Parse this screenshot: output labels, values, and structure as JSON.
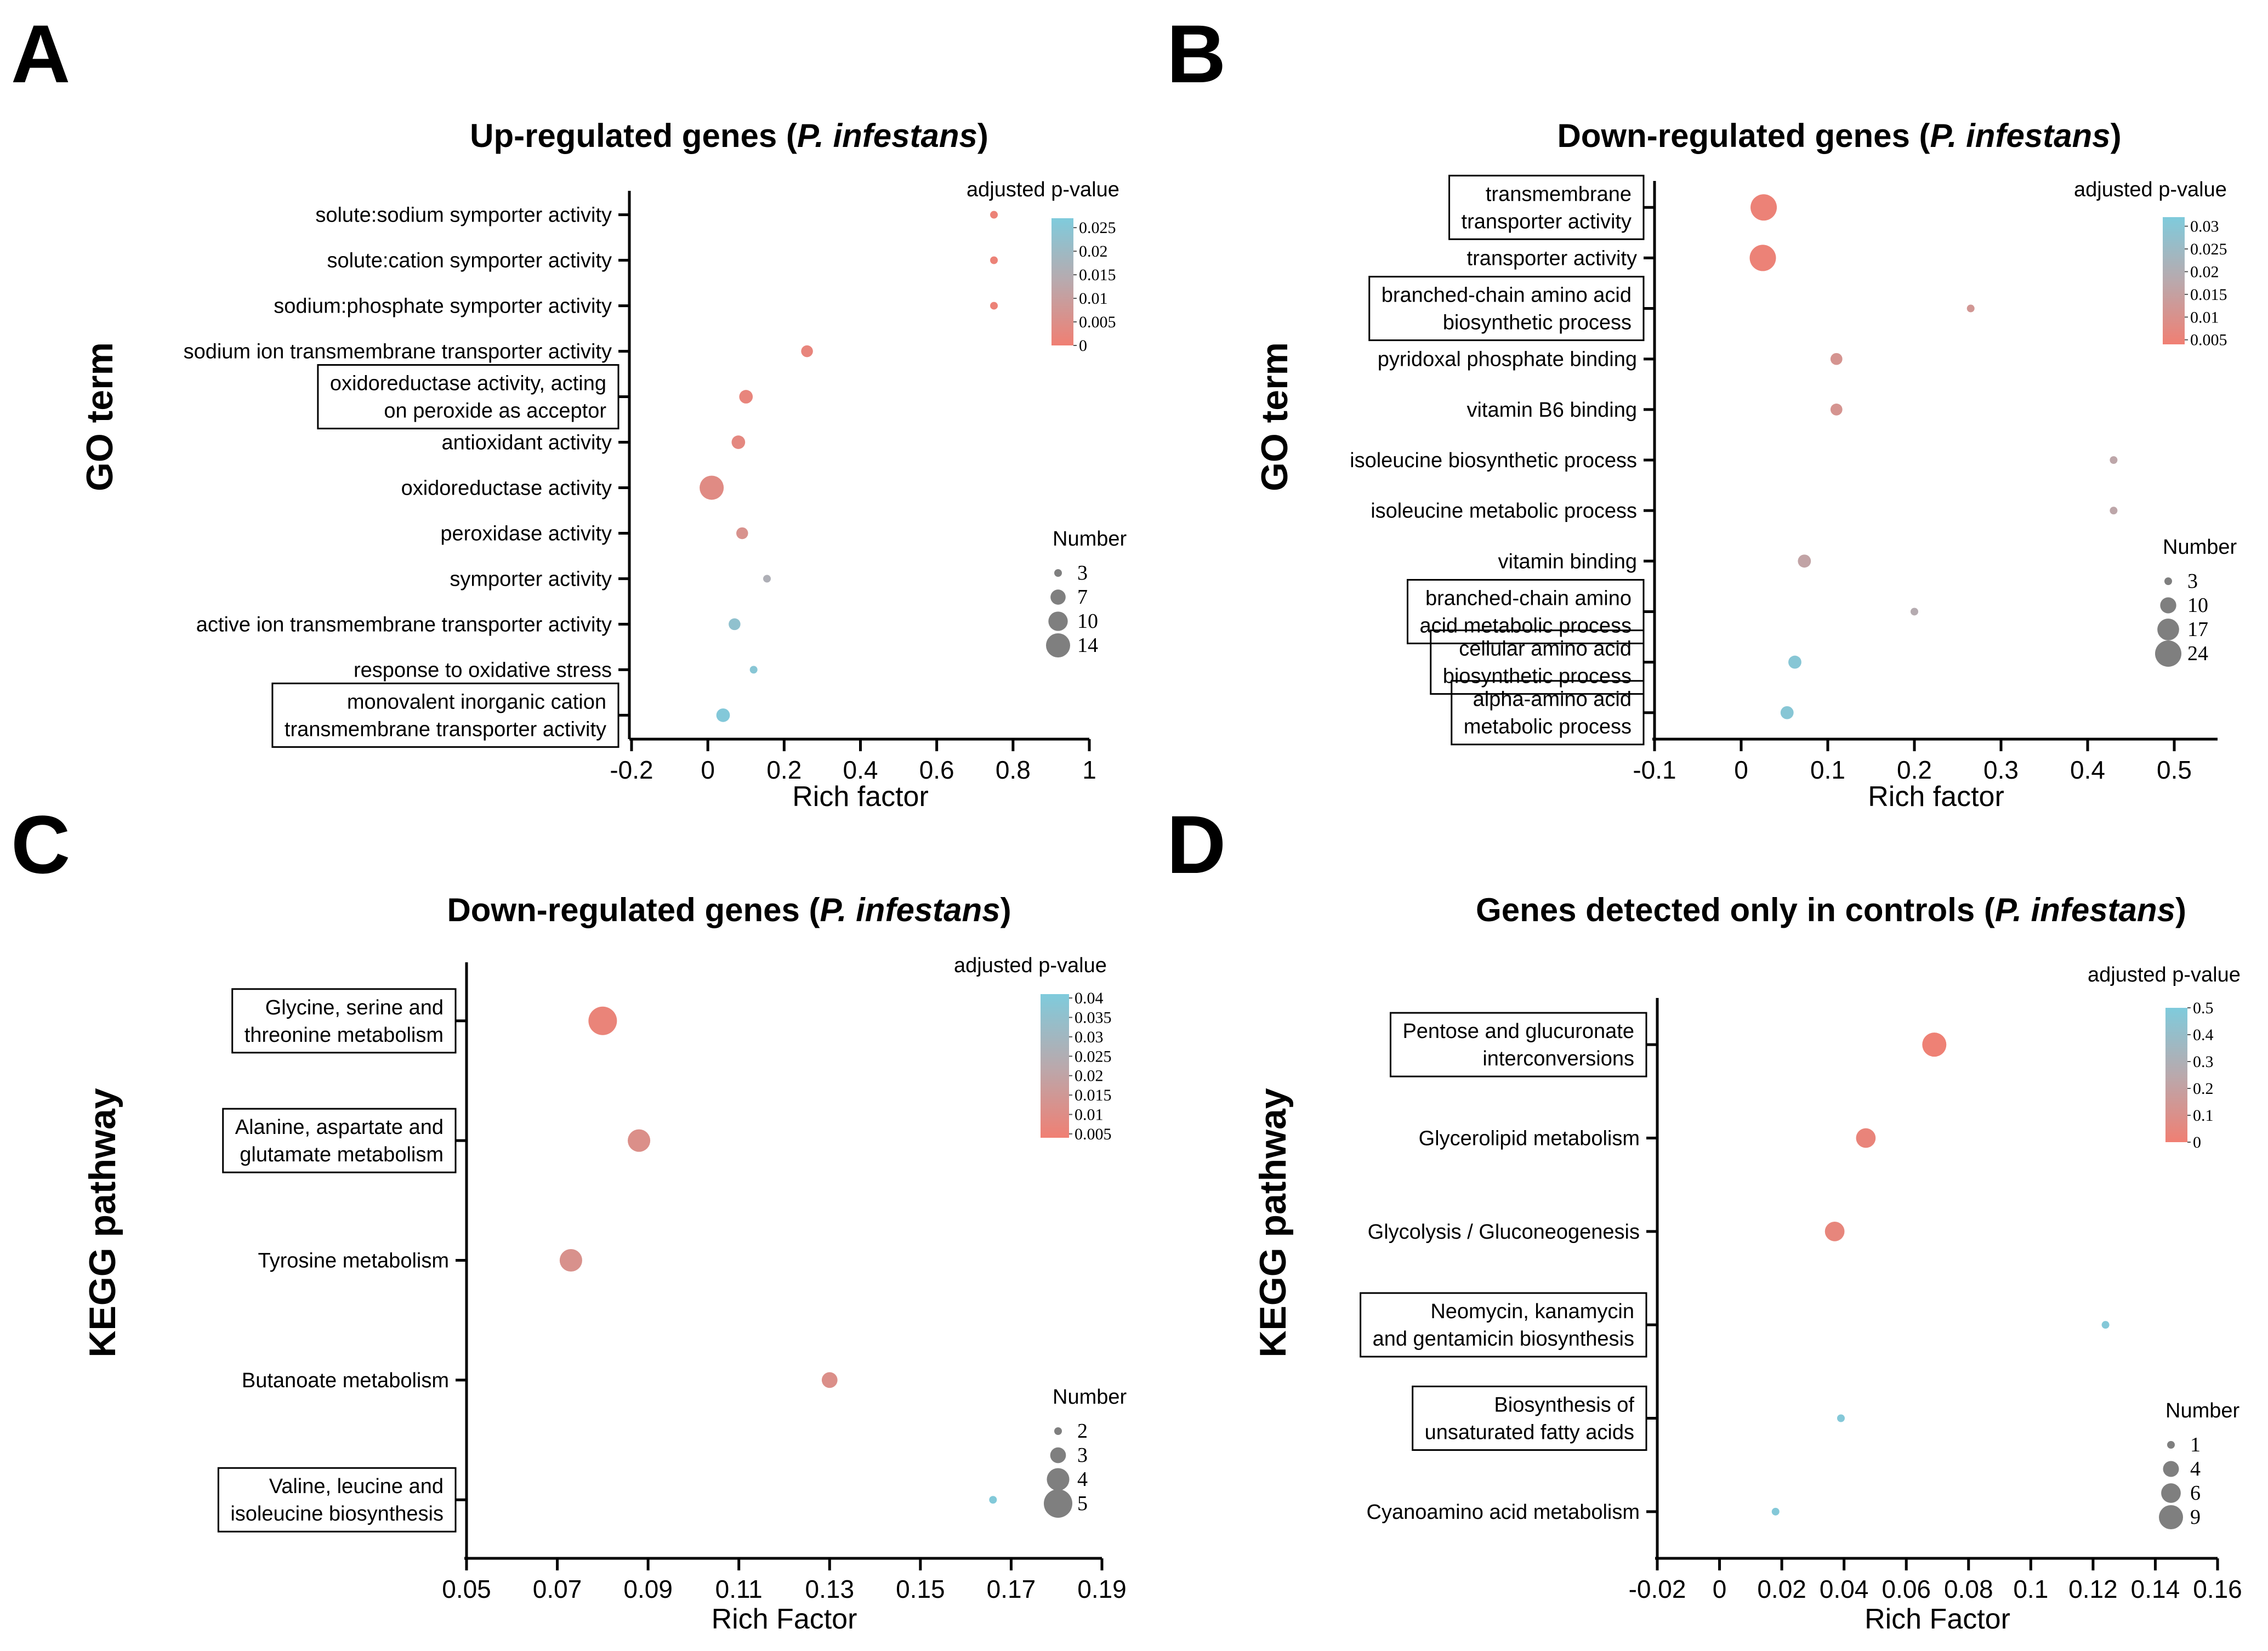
{
  "figure": {
    "panels": [
      "A",
      "B",
      "C",
      "D"
    ]
  },
  "chart_data": [
    {
      "panel": "A",
      "type": "scatter",
      "title_prefix": "Up-regulated genes (",
      "title_italic": "P. infestans",
      "title_suffix": ")",
      "xlabel": "Rich factor",
      "ylabel": "GO term",
      "xlim": [
        -0.2,
        1.0
      ],
      "xticks": [
        -0.2,
        0,
        0.2,
        0.4,
        0.6,
        0.8,
        1
      ],
      "xtick_labels": [
        "-0.2",
        "0",
        "0.2",
        "0.4",
        "0.6",
        "0.8",
        "1"
      ],
      "categories": [
        {
          "label": "solute:sodium symporter activity",
          "boxed": false
        },
        {
          "label": "solute:cation symporter activity",
          "boxed": false
        },
        {
          "label": "sodium:phosphate symporter activity",
          "boxed": false
        },
        {
          "label": "sodium ion transmembrane transporter activity",
          "boxed": false
        },
        {
          "label": [
            "oxidoreductase activity, acting",
            "on peroxide as acceptor"
          ],
          "boxed": true
        },
        {
          "label": "antioxidant activity",
          "boxed": false
        },
        {
          "label": "oxidoreductase activity",
          "boxed": false
        },
        {
          "label": "peroxidase activity",
          "boxed": false
        },
        {
          "label": "symporter activity",
          "boxed": false
        },
        {
          "label": "active ion transmembrane transporter activity",
          "boxed": false
        },
        {
          "label": "response to oxidative stress",
          "boxed": false
        },
        {
          "label": [
            "monovalent inorganic cation",
            "transmembrane transporter activity"
          ],
          "boxed": true
        }
      ],
      "points": [
        {
          "x": 0.75,
          "number": 3,
          "padj": 0.001
        },
        {
          "x": 0.75,
          "number": 3,
          "padj": 0.001
        },
        {
          "x": 0.75,
          "number": 3,
          "padj": 0.001
        },
        {
          "x": 0.26,
          "number": 5,
          "padj": 0.002
        },
        {
          "x": 0.1,
          "number": 6,
          "padj": 0.002
        },
        {
          "x": 0.08,
          "number": 6,
          "padj": 0.003
        },
        {
          "x": 0.01,
          "number": 14,
          "padj": 0.004
        },
        {
          "x": 0.09,
          "number": 5,
          "padj": 0.006
        },
        {
          "x": 0.155,
          "number": 3,
          "padj": 0.016
        },
        {
          "x": 0.07,
          "number": 5,
          "padj": 0.023
        },
        {
          "x": 0.12,
          "number": 3,
          "padj": 0.025
        },
        {
          "x": 0.04,
          "number": 6,
          "padj": 0.026
        }
      ],
      "color_legend": {
        "title": "adjusted p-value",
        "min": 0,
        "max": 0.027,
        "ticks": [
          0.025,
          0.02,
          0.015,
          0.01,
          0.005,
          0
        ],
        "tick_labels": [
          "0.025",
          "0.02",
          "0.015",
          "0.01",
          "0.005",
          "0"
        ]
      },
      "size_legend": {
        "title": "Number",
        "values": [
          3,
          7,
          10,
          14
        ],
        "labels": [
          "3",
          "7",
          "10",
          "14"
        ],
        "min": 3,
        "max": 14
      }
    },
    {
      "panel": "B",
      "type": "scatter",
      "title_prefix": "Down-regulated genes (",
      "title_italic": "P. infestans",
      "title_suffix": ")",
      "xlabel": "Rich factor",
      "ylabel": "GO term",
      "xlim": [
        -0.1,
        0.55
      ],
      "xticks": [
        -0.1,
        0,
        0.1,
        0.2,
        0.3,
        0.4,
        0.5
      ],
      "xtick_labels": [
        "-0.1",
        "0",
        "0.1",
        "0.2",
        "0.3",
        "0.4",
        "0.5"
      ],
      "categories": [
        {
          "label": [
            "transmembrane",
            "transporter activity"
          ],
          "boxed": true
        },
        {
          "label": "transporter activity",
          "boxed": false
        },
        {
          "label": [
            "branched-chain amino acid",
            "biosynthetic process"
          ],
          "boxed": true
        },
        {
          "label": "pyridoxal phosphate binding",
          "boxed": false
        },
        {
          "label": "vitamin B6 binding",
          "boxed": false
        },
        {
          "label": "isoleucine biosynthetic process",
          "boxed": false
        },
        {
          "label": "isoleucine metabolic process",
          "boxed": false
        },
        {
          "label": "vitamin binding",
          "boxed": false
        },
        {
          "label": [
            "branched-chain amino",
            "acid metabolic process"
          ],
          "boxed": true
        },
        {
          "label": [
            "cellular amino acid",
            "biosynthetic process"
          ],
          "boxed": true
        },
        {
          "label": [
            "alpha-amino acid",
            "metabolic process"
          ],
          "boxed": true
        }
      ],
      "points": [
        {
          "x": 0.026,
          "number": 24,
          "padj": 0.005
        },
        {
          "x": 0.025,
          "number": 24,
          "padj": 0.005
        },
        {
          "x": 0.265,
          "number": 3,
          "padj": 0.012
        },
        {
          "x": 0.11,
          "number": 6,
          "padj": 0.011
        },
        {
          "x": 0.11,
          "number": 6,
          "padj": 0.011
        },
        {
          "x": 0.43,
          "number": 3,
          "padj": 0.017
        },
        {
          "x": 0.43,
          "number": 3,
          "padj": 0.017
        },
        {
          "x": 0.073,
          "number": 7,
          "padj": 0.016
        },
        {
          "x": 0.2,
          "number": 3,
          "padj": 0.019
        },
        {
          "x": 0.062,
          "number": 7,
          "padj": 0.03
        },
        {
          "x": 0.053,
          "number": 7,
          "padj": 0.03
        }
      ],
      "color_legend": {
        "title": "adjusted p-value",
        "min": 0.004,
        "max": 0.032,
        "ticks": [
          0.03,
          0.025,
          0.02,
          0.015,
          0.01,
          0.005
        ],
        "tick_labels": [
          "0.03",
          "0.025",
          "0.02",
          "0.015",
          "0.01",
          "0.005"
        ]
      },
      "size_legend": {
        "title": "Number",
        "values": [
          3,
          10,
          17,
          24
        ],
        "labels": [
          "3",
          "10",
          "17",
          "24"
        ],
        "min": 3,
        "max": 24
      }
    },
    {
      "panel": "C",
      "type": "scatter",
      "title_prefix": "Down-regulated genes (",
      "title_italic": "P. infestans",
      "title_suffix": ")",
      "xlabel": "Rich Factor",
      "ylabel": "KEGG pathway",
      "xlim": [
        0.05,
        0.19
      ],
      "xticks": [
        0.05,
        0.07,
        0.09,
        0.11,
        0.13,
        0.15,
        0.17,
        0.19
      ],
      "xtick_labels": [
        "0.05",
        "0.07",
        "0.09",
        "0.11",
        "0.13",
        "0.15",
        "0.17",
        "0.19"
      ],
      "categories": [
        {
          "label": [
            "Glycine, serine and",
            "threonine metabolism"
          ],
          "boxed": true
        },
        {
          "label": [
            "Alanine, aspartate and",
            "glutamate metabolism"
          ],
          "boxed": true
        },
        {
          "label": "Tyrosine metabolism",
          "boxed": false
        },
        {
          "label": "Butanoate metabolism",
          "boxed": false
        },
        {
          "label": [
            "Valine, leucine and",
            "isoleucine biosynthesis"
          ],
          "boxed": true
        }
      ],
      "points": [
        {
          "x": 0.08,
          "number": 5,
          "padj": 0.006
        },
        {
          "x": 0.088,
          "number": 4,
          "padj": 0.011
        },
        {
          "x": 0.073,
          "number": 4,
          "padj": 0.012
        },
        {
          "x": 0.13,
          "number": 3,
          "padj": 0.011
        },
        {
          "x": 0.166,
          "number": 2,
          "padj": 0.04
        }
      ],
      "color_legend": {
        "title": "adjusted p-value",
        "min": 0.004,
        "max": 0.041,
        "ticks": [
          0.04,
          0.035,
          0.03,
          0.025,
          0.02,
          0.015,
          0.01,
          0.005
        ],
        "tick_labels": [
          "0.04",
          "0.035",
          "0.03",
          "0.025",
          "0.02",
          "0.015",
          "0.01",
          "0.005"
        ]
      },
      "size_legend": {
        "title": "Number",
        "values": [
          2,
          3,
          4,
          5
        ],
        "labels": [
          "2",
          "3",
          "4",
          "5"
        ],
        "min": 2,
        "max": 5
      }
    },
    {
      "panel": "D",
      "type": "scatter",
      "title_prefix": "Genes detected only in controls (",
      "title_italic": "P. infestans",
      "title_suffix": ")",
      "xlabel": "Rich Factor",
      "ylabel": "KEGG pathway",
      "xlim": [
        -0.02,
        0.16
      ],
      "xticks": [
        -0.02,
        0,
        0.02,
        0.04,
        0.06,
        0.08,
        0.1,
        0.12,
        0.14,
        0.16
      ],
      "xtick_labels": [
        "-0.02",
        "0",
        "0.02",
        "0.04",
        "0.06",
        "0.08",
        "0.1",
        "0.12",
        "0.14",
        "0.16"
      ],
      "categories": [
        {
          "label": [
            "Pentose and glucuronate",
            "interconversions"
          ],
          "boxed": true
        },
        {
          "label": "Glycerolipid metabolism",
          "boxed": false
        },
        {
          "label": "Glycolysis / Gluconeogenesis",
          "boxed": false
        },
        {
          "label": [
            "Neomycin, kanamycin",
            "and gentamicin biosynthesis"
          ],
          "boxed": true
        },
        {
          "label": [
            "Biosynthesis of",
            "unsaturated fatty acids"
          ],
          "boxed": true
        },
        {
          "label": "Cyanoamino acid metabolism",
          "boxed": false
        }
      ],
      "points": [
        {
          "x": 0.069,
          "number": 9,
          "padj": 0.01
        },
        {
          "x": 0.047,
          "number": 6,
          "padj": 0.03
        },
        {
          "x": 0.037,
          "number": 6,
          "padj": 0.04
        },
        {
          "x": 0.124,
          "number": 1,
          "padj": 0.48
        },
        {
          "x": 0.039,
          "number": 1,
          "padj": 0.48
        },
        {
          "x": 0.018,
          "number": 1,
          "padj": 0.48
        }
      ],
      "color_legend": {
        "title": "adjusted p-value",
        "min": 0,
        "max": 0.5,
        "ticks": [
          0.5,
          0.4,
          0.3,
          0.2,
          0.1,
          0
        ],
        "tick_labels": [
          "0.5",
          "0.4",
          "0.3",
          "0.2",
          "0.1",
          "0"
        ]
      },
      "size_legend": {
        "title": "Number",
        "values": [
          1,
          4,
          6,
          9
        ],
        "labels": [
          "1",
          "4",
          "6",
          "9"
        ],
        "min": 1,
        "max": 9
      }
    }
  ]
}
